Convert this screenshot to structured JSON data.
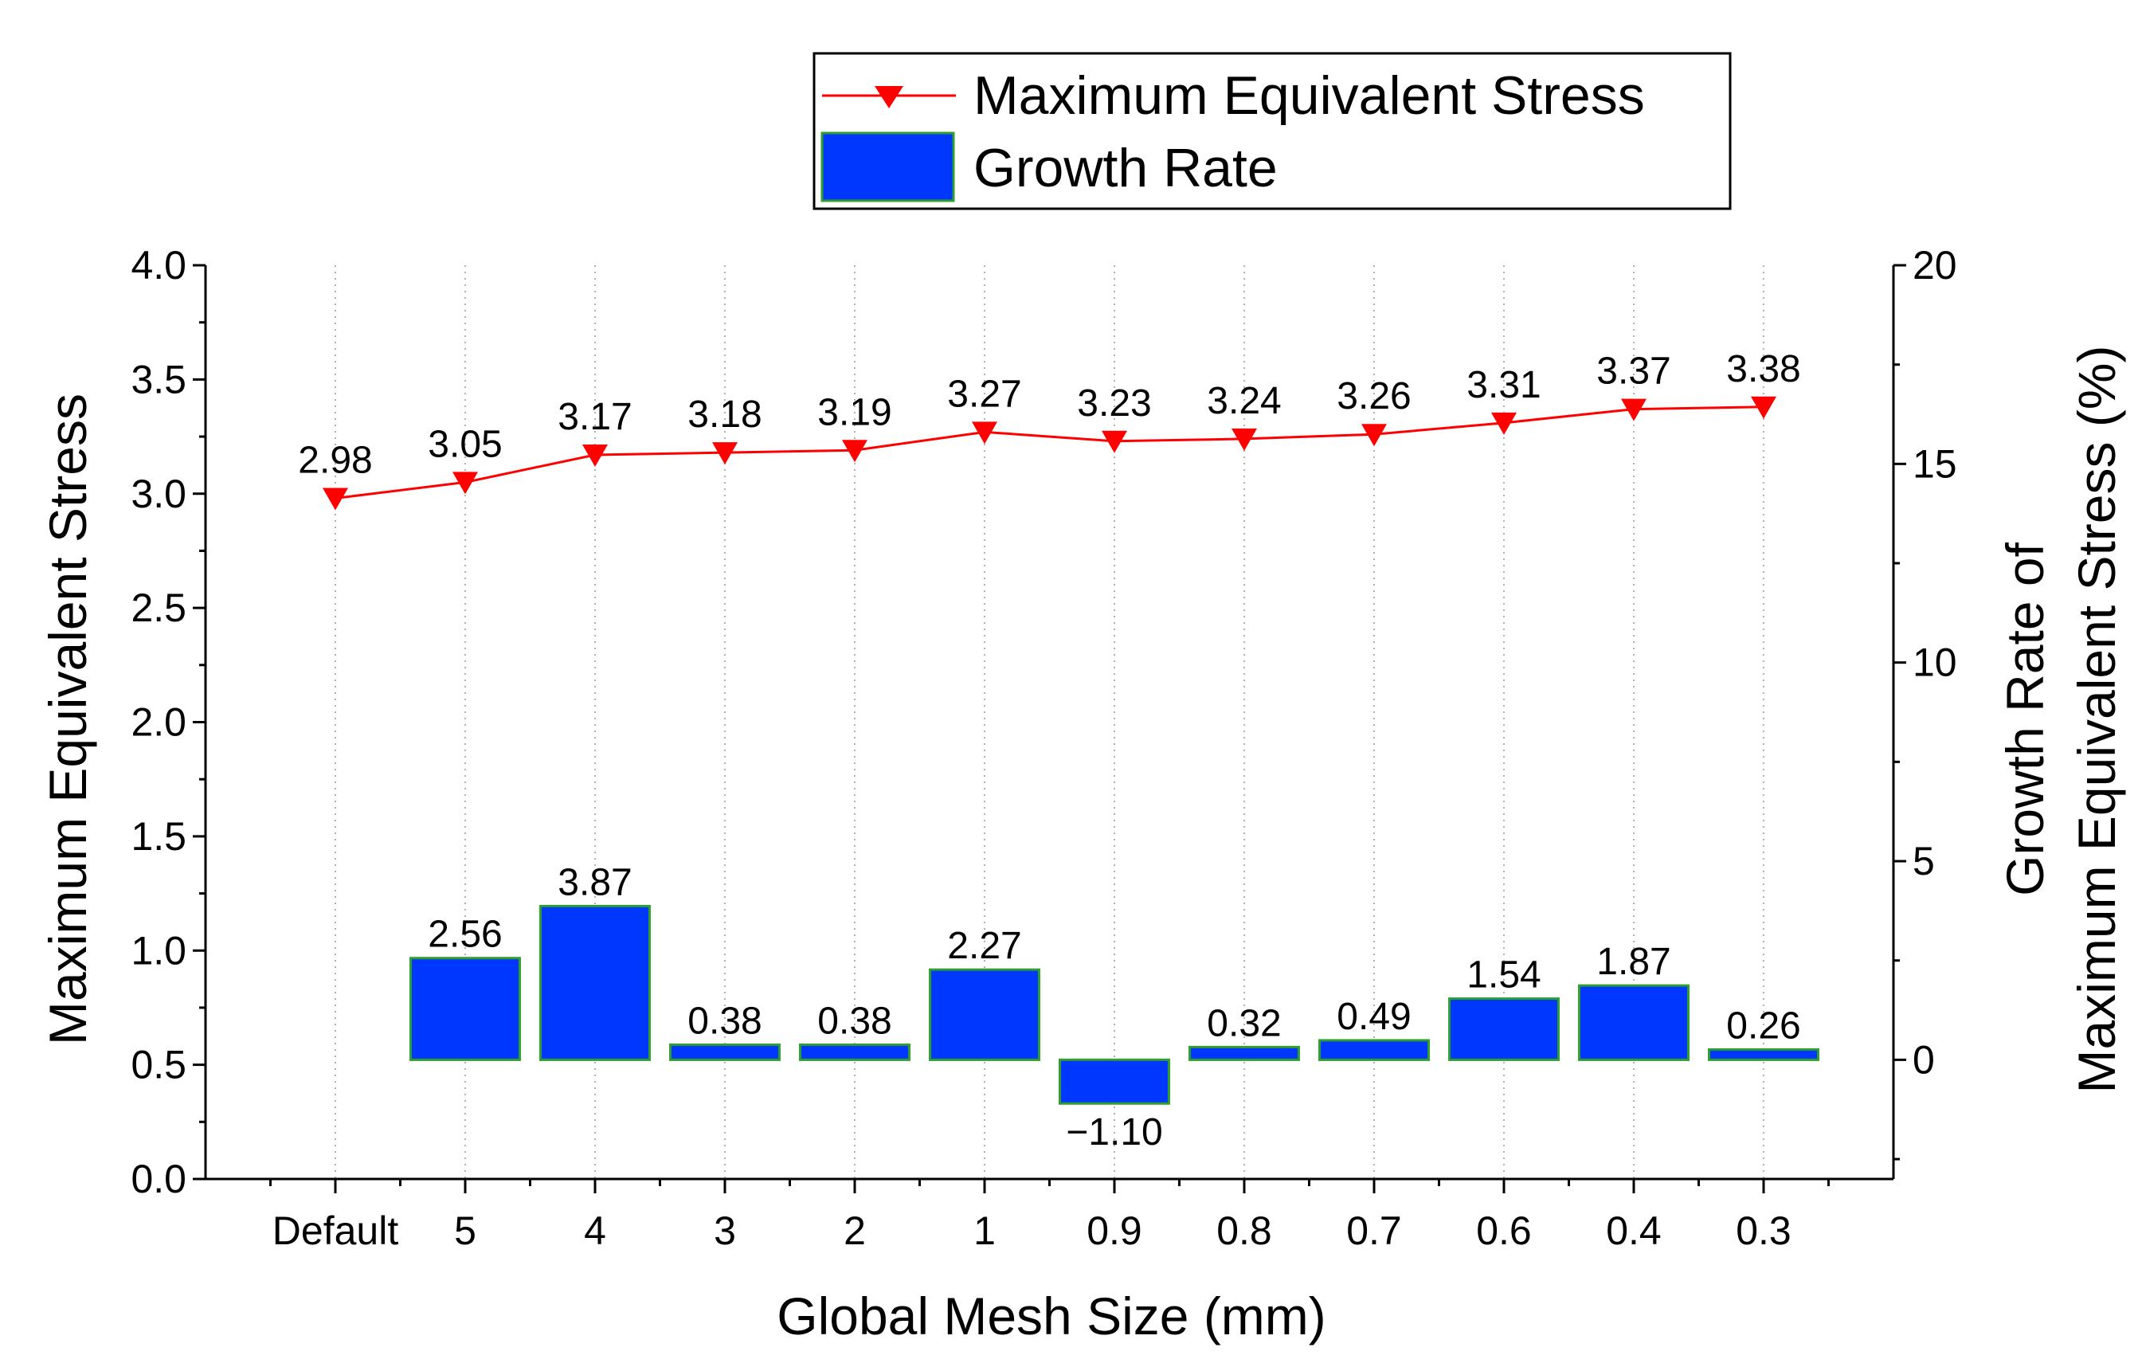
{
  "chart_data": {
    "type": "bar+line",
    "categories": [
      "Default",
      "5",
      "4",
      "3",
      "2",
      "1",
      "0.9",
      "0.8",
      "0.7",
      "0.6",
      "0.4",
      "0.3"
    ],
    "xlabel": "Global Mesh Size (mm)",
    "ylabel_left": "Maximum Equivalent Stress",
    "ylabel_right_line1": "Growth Rate of",
    "ylabel_right_line2": "Maximum Equivalent Stress (%)",
    "ylim_left": [
      0,
      4.0
    ],
    "yticks_left": [
      "0.0",
      "0.5",
      "1.0",
      "1.5",
      "2.0",
      "2.5",
      "3.0",
      "3.5",
      "4.0"
    ],
    "ylim_right": [
      -3.0,
      20
    ],
    "yticks_right": [
      "0",
      "5",
      "10",
      "15",
      "20"
    ],
    "series": [
      {
        "name": "Maximum Equivalent Stress",
        "kind": "line",
        "axis": "left",
        "marker": "down-triangle",
        "color": "#ff0000",
        "values": [
          2.98,
          3.05,
          3.17,
          3.18,
          3.19,
          3.27,
          3.23,
          3.24,
          3.26,
          3.31,
          3.37,
          3.38
        ],
        "labels": [
          "2.98",
          "3.05",
          "3.17",
          "3.18",
          "3.19",
          "3.27",
          "3.23",
          "3.24",
          "3.26",
          "3.31",
          "3.37",
          "3.38"
        ]
      },
      {
        "name": "Growth Rate",
        "kind": "bar",
        "axis": "right",
        "color": "#0037ff",
        "edge_color": "#2e9e2e",
        "values": [
          null,
          2.56,
          3.87,
          0.38,
          0.38,
          2.27,
          -1.1,
          0.32,
          0.49,
          1.54,
          1.87,
          0.26
        ],
        "labels": [
          null,
          "2.56",
          "3.87",
          "0.38",
          "0.38",
          "2.27",
          "−1.10",
          "0.32",
          "0.49",
          "1.54",
          "1.87",
          "0.26"
        ]
      }
    ],
    "legend": {
      "position": "top-center",
      "entries": [
        "Maximum Equivalent Stress",
        "Growth Rate"
      ]
    },
    "grid": "vertical-dotted"
  }
}
